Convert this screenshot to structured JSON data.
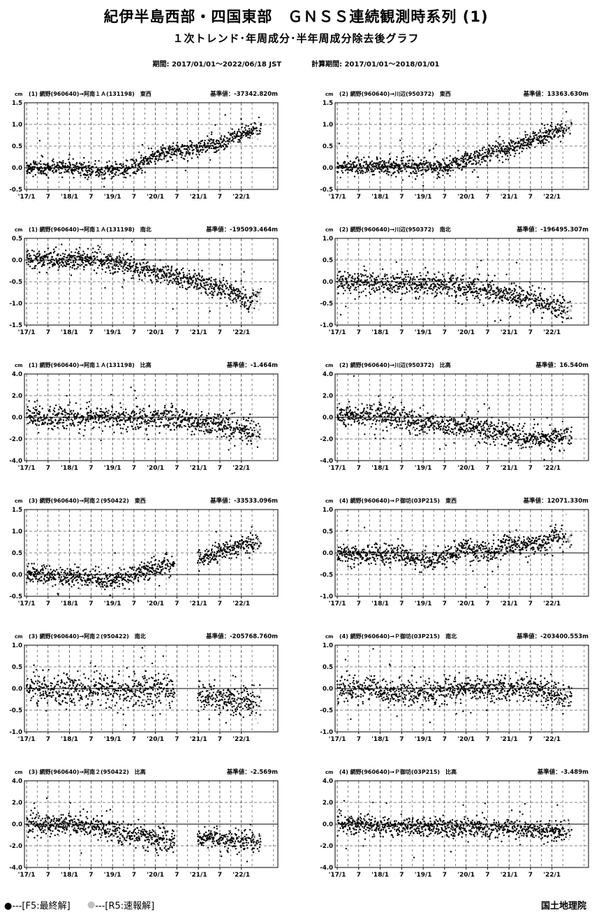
{
  "header": {
    "title": "紀伊半島西部・四国東部　ＧＮＳＳ連続観測時系列 (1)",
    "subtitle": "１次トレンド･年周成分･半年周成分除去後グラフ",
    "period_label": "期間: 2017/01/01～2022/06/18 JST",
    "calc_period_label": "計算期間: 2017/01/01～2018/01/01"
  },
  "footer": {
    "legend_final": "●---[F5:最終解]",
    "legend_rapid": "●---[R5:速報解]",
    "legend_final_color": "#000000",
    "legend_rapid_color": "#c0c0c0",
    "organization": "国土地理院"
  },
  "chart_data": [
    {
      "type": "scatter",
      "unit": "cm",
      "caption": "(1) 網野(960640)→阿南１Ａ(131198)　東西",
      "reference": "基準値：-37342.820m",
      "x_ticks": [
        "'17/1",
        "7",
        "'18/1",
        "7",
        "'19/1",
        "7",
        "'20/1",
        "7",
        "'21/1",
        "7",
        "'22/1"
      ],
      "ylim": [
        -0.5,
        1.5
      ],
      "yticks": [
        "1.5",
        "1.0",
        "0.5",
        "0.0",
        "-0.5"
      ],
      "series_trend": [
        {
          "x": 2017.0,
          "y": 0.0
        },
        {
          "x": 2018.0,
          "y": 0.0
        },
        {
          "x": 2018.8,
          "y": -0.1
        },
        {
          "x": 2019.5,
          "y": 0.0
        },
        {
          "x": 2019.9,
          "y": 0.25
        },
        {
          "x": 2020.5,
          "y": 0.4
        },
        {
          "x": 2021.5,
          "y": 0.55
        },
        {
          "x": 2022.0,
          "y": 0.8
        },
        {
          "x": 2022.46,
          "y": 0.9
        }
      ],
      "noise": 0.09,
      "seed": 11
    },
    {
      "type": "scatter",
      "unit": "cm",
      "caption": "(2) 網野(960640)→川辺(950372)　東西",
      "reference": "基準値：13363.630m",
      "x_ticks": [
        "'17/1",
        "7",
        "'18/1",
        "7",
        "'19/1",
        "7",
        "'20/1",
        "7",
        "'21/1",
        "7",
        "'22/1"
      ],
      "ylim": [
        -0.5,
        1.5
      ],
      "yticks": [
        "1.5",
        "1.0",
        "0.5",
        "0.0",
        "-0.5"
      ],
      "series_trend": [
        {
          "x": 2017.0,
          "y": 0.0
        },
        {
          "x": 2018.5,
          "y": 0.05
        },
        {
          "x": 2019.5,
          "y": 0.0
        },
        {
          "x": 2020.0,
          "y": 0.2
        },
        {
          "x": 2021.0,
          "y": 0.45
        },
        {
          "x": 2022.0,
          "y": 0.8
        },
        {
          "x": 2022.46,
          "y": 0.95
        }
      ],
      "noise": 0.1,
      "seed": 12
    },
    {
      "type": "scatter",
      "unit": "cm",
      "caption": "(1) 網野(960640)→阿南１Ａ(131198)　南北",
      "reference": "基準値：-195093.464m",
      "x_ticks": [
        "'17/1",
        "7",
        "'18/1",
        "7",
        "'19/1",
        "7",
        "'20/1",
        "7",
        "'21/1",
        "7",
        "'22/1"
      ],
      "ylim": [
        -1.5,
        0.5
      ],
      "yticks": [
        "0.5",
        "0.0",
        "-0.5",
        "-1.0",
        "-1.5"
      ],
      "series_trend": [
        {
          "x": 2017.0,
          "y": 0.0
        },
        {
          "x": 2018.5,
          "y": 0.0
        },
        {
          "x": 2019.5,
          "y": -0.15
        },
        {
          "x": 2020.5,
          "y": -0.4
        },
        {
          "x": 2021.5,
          "y": -0.65
        },
        {
          "x": 2022.2,
          "y": -0.95
        },
        {
          "x": 2022.46,
          "y": -0.8
        }
      ],
      "noise": 0.12,
      "seed": 13
    },
    {
      "type": "scatter",
      "unit": "cm",
      "caption": "(2) 網野(960640)→川辺(950372)　南北",
      "reference": "基準値：-196495.307m",
      "x_ticks": [
        "'17/1",
        "7",
        "'18/1",
        "7",
        "'19/1",
        "7",
        "'20/1",
        "7",
        "'21/1",
        "7",
        "'22/1"
      ],
      "ylim": [
        -1.0,
        1.0
      ],
      "yticks": [
        "1.0",
        "0.5",
        "0.0",
        "-0.5",
        "-1.0"
      ],
      "series_trend": [
        {
          "x": 2017.0,
          "y": 0.0
        },
        {
          "x": 2018.5,
          "y": -0.05
        },
        {
          "x": 2019.5,
          "y": -0.1
        },
        {
          "x": 2020.5,
          "y": -0.2
        },
        {
          "x": 2021.5,
          "y": -0.4
        },
        {
          "x": 2022.46,
          "y": -0.65
        }
      ],
      "noise": 0.13,
      "seed": 14
    },
    {
      "type": "scatter",
      "unit": "cm",
      "caption": "(1) 網野(960640)→阿南１Ａ(131198)　比高",
      "reference": "基準値：-1.464m",
      "x_ticks": [
        "'17/1",
        "7",
        "'18/1",
        "7",
        "'19/1",
        "7",
        "'20/1",
        "7",
        "'21/1",
        "7",
        "'22/1"
      ],
      "ylim": [
        -4.0,
        4.0
      ],
      "yticks": [
        "4.0",
        "2.0",
        "0.0",
        "-2.0",
        "-4.0"
      ],
      "series_trend": [
        {
          "x": 2017.0,
          "y": 0.0
        },
        {
          "x": 2020.0,
          "y": 0.0
        },
        {
          "x": 2021.0,
          "y": -0.5
        },
        {
          "x": 2022.46,
          "y": -1.4
        }
      ],
      "noise": 0.55,
      "seed": 15
    },
    {
      "type": "scatter",
      "unit": "cm",
      "caption": "(2) 網野(960640)→川辺(950372)　比高",
      "reference": "基準値：16.540m",
      "x_ticks": [
        "'17/1",
        "7",
        "'18/1",
        "7",
        "'19/1",
        "7",
        "'20/1",
        "7",
        "'21/1",
        "7",
        "'22/1"
      ],
      "ylim": [
        -4.0,
        4.0
      ],
      "yticks": [
        "4.0",
        "2.0",
        "0.0",
        "-2.0",
        "-4.0"
      ],
      "series_trend": [
        {
          "x": 2017.0,
          "y": 0.0
        },
        {
          "x": 2018.0,
          "y": 0.3
        },
        {
          "x": 2019.0,
          "y": -0.6
        },
        {
          "x": 2020.0,
          "y": -0.8
        },
        {
          "x": 2021.0,
          "y": -1.4
        },
        {
          "x": 2021.5,
          "y": -1.9
        },
        {
          "x": 2022.46,
          "y": -1.8
        }
      ],
      "noise": 0.5,
      "seed": 16
    },
    {
      "type": "scatter",
      "unit": "cm",
      "caption": "(3) 網野(960640)→阿南２(950422)　東西",
      "reference": "基準値：-33533.096m",
      "x_ticks": [
        "'17/1",
        "7",
        "'18/1",
        "7",
        "'19/1",
        "7",
        "'20/1",
        "7",
        "'21/1",
        "7",
        "'22/1"
      ],
      "ylim": [
        -0.5,
        1.5
      ],
      "yticks": [
        "1.5",
        "1.0",
        "0.5",
        "0.0",
        "-0.5"
      ],
      "gaps": [
        [
          2020.45,
          2020.98
        ]
      ],
      "series_trend": [
        {
          "x": 2017.0,
          "y": 0.0
        },
        {
          "x": 2018.0,
          "y": -0.05
        },
        {
          "x": 2019.0,
          "y": -0.15
        },
        {
          "x": 2019.5,
          "y": 0.0
        },
        {
          "x": 2020.4,
          "y": 0.25
        },
        {
          "x": 2021.0,
          "y": 0.35
        },
        {
          "x": 2022.0,
          "y": 0.7
        },
        {
          "x": 2022.46,
          "y": 0.75
        }
      ],
      "noise": 0.1,
      "seed": 17
    },
    {
      "type": "scatter",
      "unit": "cm",
      "caption": "(4) 網野(960640)→Ｐ御坊(03P215)　東西",
      "reference": "基準値：12071.330m",
      "x_ticks": [
        "'17/1",
        "7",
        "'18/1",
        "7",
        "'19/1",
        "7",
        "'20/1",
        "7",
        "'21/1",
        "7",
        "'22/1"
      ],
      "ylim": [
        -1.0,
        1.0
      ],
      "yticks": [
        "1.0",
        "0.5",
        "0.0",
        "-0.5",
        "-1.0"
      ],
      "series_trend": [
        {
          "x": 2017.0,
          "y": 0.0
        },
        {
          "x": 2018.5,
          "y": -0.05
        },
        {
          "x": 2019.2,
          "y": -0.2
        },
        {
          "x": 2020.0,
          "y": 0.1
        },
        {
          "x": 2020.6,
          "y": 0.0
        },
        {
          "x": 2021.0,
          "y": 0.2
        },
        {
          "x": 2021.9,
          "y": 0.2
        },
        {
          "x": 2022.0,
          "y": 0.4
        },
        {
          "x": 2022.46,
          "y": 0.3
        }
      ],
      "noise": 0.12,
      "seed": 18
    },
    {
      "type": "scatter",
      "unit": "cm",
      "caption": "(3) 網野(960640)→阿南２(950422)　南北",
      "reference": "基準値：-205768.760m",
      "x_ticks": [
        "'17/1",
        "7",
        "'18/1",
        "7",
        "'19/1",
        "7",
        "'20/1",
        "7",
        "'21/1",
        "7",
        "'22/1"
      ],
      "ylim": [
        -1.0,
        1.0
      ],
      "yticks": [
        "1.0",
        "0.5",
        "0.0",
        "-0.5",
        "-1.0"
      ],
      "gaps": [
        [
          2020.45,
          2020.98
        ]
      ],
      "series_trend": [
        {
          "x": 2017.0,
          "y": 0.0
        },
        {
          "x": 2020.4,
          "y": -0.05
        },
        {
          "x": 2021.0,
          "y": -0.2
        },
        {
          "x": 2022.46,
          "y": -0.35
        }
      ],
      "noise": 0.18,
      "seed": 19
    },
    {
      "type": "scatter",
      "unit": "cm",
      "caption": "(4) 網野(960640)→Ｐ御坊(03P215)　南北",
      "reference": "基準値：-203400.553m",
      "x_ticks": [
        "'17/1",
        "7",
        "'18/1",
        "7",
        "'19/1",
        "7",
        "'20/1",
        "7",
        "'21/1",
        "7",
        "'22/1"
      ],
      "ylim": [
        -1.0,
        1.0
      ],
      "yticks": [
        "1.0",
        "0.5",
        "0.0",
        "-0.5",
        "-1.0"
      ],
      "series_trend": [
        {
          "x": 2017.0,
          "y": 0.0
        },
        {
          "x": 2019.0,
          "y": -0.1
        },
        {
          "x": 2020.0,
          "y": 0.0
        },
        {
          "x": 2021.5,
          "y": 0.0
        },
        {
          "x": 2022.46,
          "y": -0.2
        }
      ],
      "noise": 0.14,
      "seed": 20
    },
    {
      "type": "scatter",
      "unit": "cm",
      "caption": "(3) 網野(960640)→阿南２(950422)　比高",
      "reference": "基準値：-2.569m",
      "x_ticks": [
        "'17/1",
        "7",
        "'18/1",
        "7",
        "'19/1",
        "7",
        "'20/1",
        "7",
        "'21/1",
        "7",
        "'22/1"
      ],
      "ylim": [
        -4.0,
        4.0
      ],
      "yticks": [
        "4.0",
        "2.0",
        "0.0",
        "-2.0",
        "-4.0"
      ],
      "gaps": [
        [
          2020.45,
          2020.98
        ]
      ],
      "series_trend": [
        {
          "x": 2017.0,
          "y": 0.0
        },
        {
          "x": 2018.0,
          "y": 0.0
        },
        {
          "x": 2019.0,
          "y": -0.6
        },
        {
          "x": 2020.4,
          "y": -1.6
        },
        {
          "x": 2021.0,
          "y": -1.3
        },
        {
          "x": 2022.46,
          "y": -1.7
        }
      ],
      "noise": 0.5,
      "seed": 21
    },
    {
      "type": "scatter",
      "unit": "cm",
      "caption": "(4) 網野(960640)→Ｐ御坊(03P215)　比高",
      "reference": "基準値：-3.489m",
      "x_ticks": [
        "'17/1",
        "7",
        "'18/1",
        "7",
        "'19/1",
        "7",
        "'20/1",
        "7",
        "'21/1",
        "7",
        "'22/1"
      ],
      "ylim": [
        -4.0,
        4.0
      ],
      "yticks": [
        "4.0",
        "2.0",
        "0.0",
        "-2.0",
        "-4.0"
      ],
      "series_trend": [
        {
          "x": 2017.0,
          "y": 0.0
        },
        {
          "x": 2019.0,
          "y": -0.3
        },
        {
          "x": 2020.5,
          "y": -0.4
        },
        {
          "x": 2022.46,
          "y": -0.6
        }
      ],
      "noise": 0.45,
      "seed": 22
    }
  ]
}
